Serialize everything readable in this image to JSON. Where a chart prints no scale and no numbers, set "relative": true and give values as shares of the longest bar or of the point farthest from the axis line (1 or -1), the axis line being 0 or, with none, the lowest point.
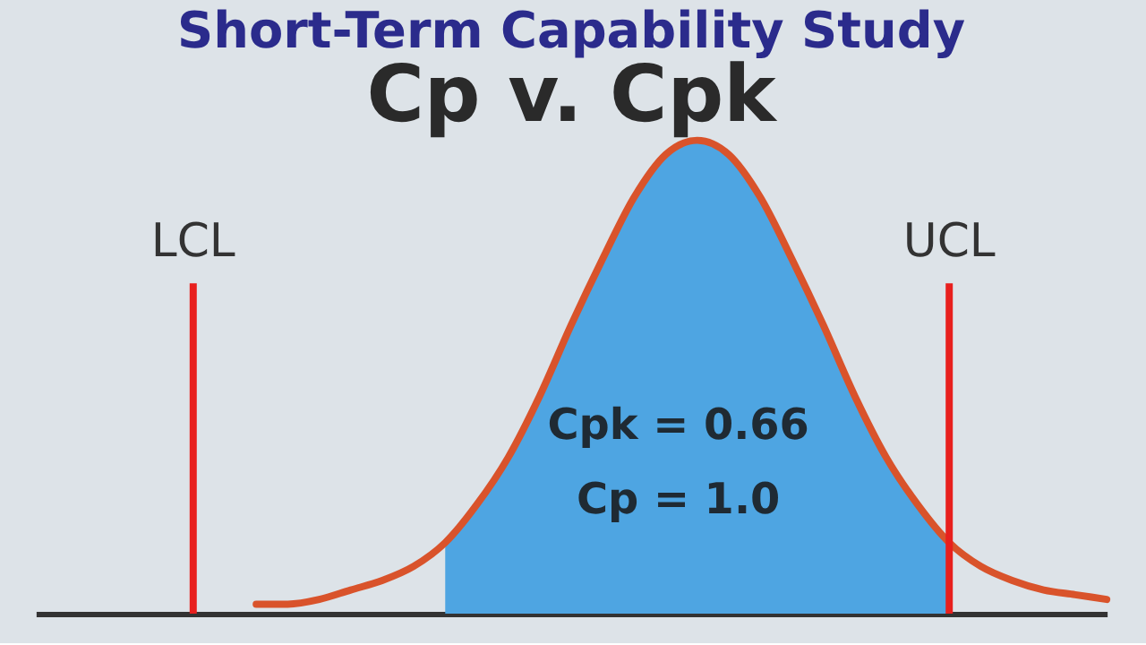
{
  "chart_data": {
    "type": "line",
    "title": "Short-Term Capability Study",
    "subtitle": "Cp v. Cpk",
    "relative": true,
    "grid": false,
    "legend": false,
    "tick_labels": false,
    "categories": [
      null,
      null,
      null,
      null,
      null,
      null,
      null,
      null,
      null,
      null,
      null,
      null,
      null,
      null,
      null,
      null,
      null,
      null,
      null,
      null,
      null,
      null,
      null,
      null,
      null,
      null,
      null,
      null,
      null,
      null,
      null,
      null,
      null,
      null,
      null
    ],
    "series": [
      {
        "type": "area",
        "color": "#4ea5e2",
        "values": [
          null,
          null,
          null,
          null,
          null,
          null,
          null,
          null,
          null,
          null,
          null,
          null,
          null,
          0.15,
          0.23,
          0.33,
          0.46,
          0.61,
          0.75,
          0.88,
          0.97,
          1,
          0.97,
          0.88,
          0.75,
          0.61,
          0.46,
          0.33,
          0.23,
          0.15,
          null,
          null,
          null,
          null,
          null
        ]
      },
      {
        "color": "#d9532b",
        "values": [
          null,
          null,
          null,
          null,
          null,
          null,
          null,
          0.02,
          0.02,
          0.03,
          0.05,
          0.07,
          0.1,
          0.15,
          0.23,
          0.33,
          0.46,
          0.61,
          0.75,
          0.88,
          0.97,
          1,
          0.97,
          0.88,
          0.75,
          0.61,
          0.46,
          0.33,
          0.23,
          0.15,
          0.1,
          0.07,
          0.05,
          0.04,
          0.03
        ]
      }
    ],
    "annotations": [
      "LCL",
      "UCL",
      "Cpk = 0.66",
      "Cp = 1.0"
    ]
  }
}
